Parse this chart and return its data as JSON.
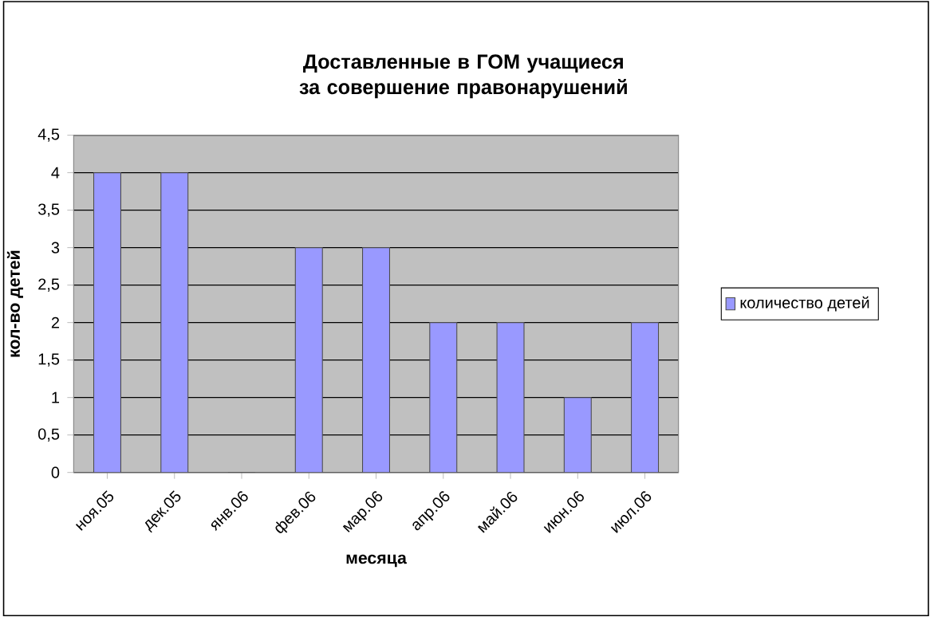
{
  "chart_data": {
    "type": "bar",
    "title": "Доставленные в ГОМ учащиеся за совершение правонарушений",
    "xlabel": "месяца",
    "ylabel": "кол-во детей",
    "categories": [
      "ноя.05",
      "дек.05",
      "янв.06",
      "фев.06",
      "мар.06",
      "апр.06",
      "май.06",
      "июн.06",
      "июл.06"
    ],
    "series": [
      {
        "name": "количество детей",
        "color": "#9999ff",
        "values": [
          4,
          4,
          0,
          3,
          3,
          2,
          2,
          1,
          2
        ]
      }
    ],
    "ylim": [
      0,
      4.5
    ],
    "yticks": [
      0,
      {
        "value": 0.5,
        "label": "0,5"
      },
      1,
      {
        "value": 1.5,
        "label": "1,5"
      },
      2,
      {
        "value": 2.5,
        "label": "2,5"
      },
      3,
      {
        "value": 3.5,
        "label": "3,5"
      },
      4,
      {
        "value": 4.5,
        "label": "4,5"
      }
    ],
    "grid": "y",
    "legend": "right"
  }
}
